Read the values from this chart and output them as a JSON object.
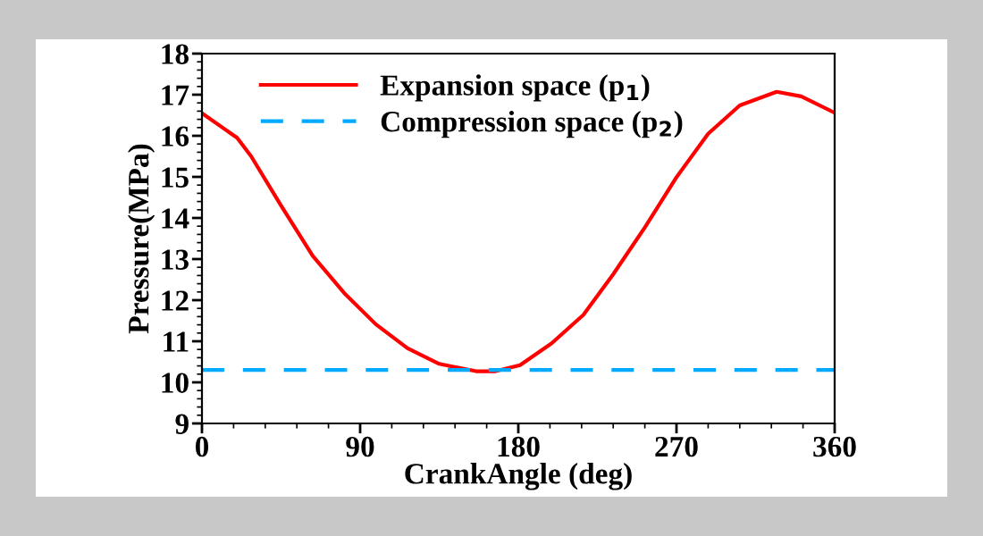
{
  "chart_data": {
    "type": "line",
    "xlabel": "CrankAngle (deg)",
    "ylabel": "Pressure(MPa)",
    "xlim": [
      0,
      360
    ],
    "xticks": [
      0,
      90,
      180,
      270,
      360
    ],
    "ylim": [
      9,
      18
    ],
    "yticks": [
      9,
      10,
      11,
      12,
      13,
      14,
      15,
      16,
      17,
      18
    ],
    "legend": "top left",
    "grid": false,
    "marker": "none",
    "series": [
      {
        "name": "Expansion space (p$_{1}$)",
        "color": "#ff0000",
        "line_style": "solid",
        "x": [
          0,
          20,
          28,
          45,
          63,
          81,
          99,
          117,
          135,
          156,
          167,
          181,
          199,
          217,
          234,
          252,
          270,
          288,
          306,
          327,
          341,
          360
        ],
        "values": [
          16.55,
          15.95,
          15.5,
          14.3,
          13.08,
          12.17,
          11.41,
          10.83,
          10.45,
          10.27,
          10.27,
          10.42,
          10.95,
          11.64,
          12.63,
          13.77,
          14.99,
          16.05,
          16.74,
          17.07,
          16.96,
          16.56
        ]
      },
      {
        "name": "Compression space (p$_{2}$)",
        "color": "#00aaff",
        "line_style": "dashed",
        "x": [
          0,
          360
        ],
        "values": [
          10.3,
          10.3
        ]
      }
    ]
  }
}
